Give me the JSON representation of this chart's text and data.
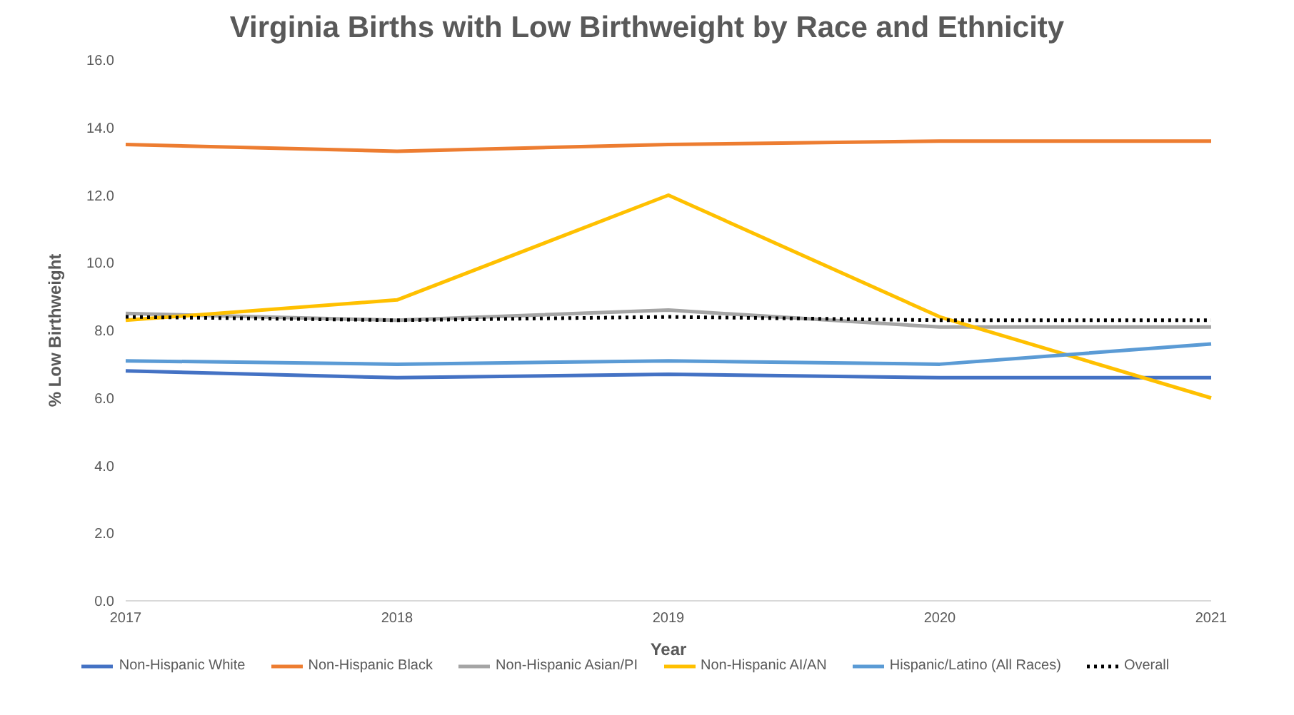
{
  "chart_data": {
    "type": "line",
    "title": "Virginia Births with Low Birthweight by Race and Ethnicity",
    "xlabel": "Year",
    "ylabel": "% Low Birthweight",
    "categories": [
      "2017",
      "2018",
      "2019",
      "2020",
      "2021"
    ],
    "ylim": [
      0,
      16
    ],
    "yticks": [
      {
        "value": 0,
        "label": "0.0"
      },
      {
        "value": 2,
        "label": "2.0"
      },
      {
        "value": 4,
        "label": "4.0"
      },
      {
        "value": 6,
        "label": "6.0"
      },
      {
        "value": 8,
        "label": "8.0"
      },
      {
        "value": 10,
        "label": "10.0"
      },
      {
        "value": 12,
        "label": "12.0"
      },
      {
        "value": 14,
        "label": "14.0"
      },
      {
        "value": 16,
        "label": "16.0"
      }
    ],
    "grid": false,
    "legend": "bottom",
    "marker": "none",
    "series": [
      {
        "name": "Non-Hispanic White",
        "color": "#4472c4",
        "values": [
          6.8,
          6.6,
          6.7,
          6.6,
          6.6
        ]
      },
      {
        "name": "Non-Hispanic Black",
        "color": "#ed7d31",
        "values": [
          13.5,
          13.3,
          13.5,
          13.6,
          13.6
        ]
      },
      {
        "name": "Non-Hispanic Asian/PI",
        "color": "#a5a5a5",
        "values": [
          8.5,
          8.3,
          8.6,
          8.1,
          8.1
        ]
      },
      {
        "name": "Non-Hispanic AI/AN",
        "color": "#ffc000",
        "values": [
          8.3,
          8.9,
          12.0,
          8.4,
          6.0
        ]
      },
      {
        "name": "Hispanic/Latino (All Races)",
        "color": "#5b9bd5",
        "values": [
          7.1,
          7.0,
          7.1,
          7.0,
          7.6
        ]
      },
      {
        "name": "Overall",
        "color": "#000000",
        "values": [
          8.4,
          8.3,
          8.4,
          8.3,
          8.3
        ],
        "line_style": "dotted"
      }
    ]
  }
}
